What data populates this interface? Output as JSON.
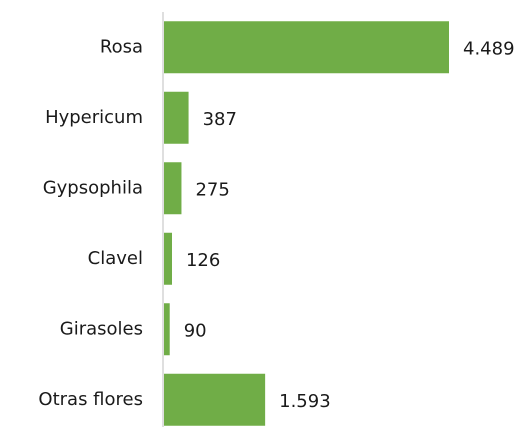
{
  "chart_data": {
    "type": "barh",
    "categories": [
      "Rosa",
      "Hypericum",
      "Gypsophila",
      "Clavel",
      "Girasoles",
      "Otras flores"
    ],
    "values": [
      4489,
      387,
      275,
      126,
      90,
      1593
    ],
    "value_labels": [
      "4.489",
      "387",
      "275",
      "126",
      "90",
      "1.593"
    ],
    "color": "#70ad47"
  }
}
